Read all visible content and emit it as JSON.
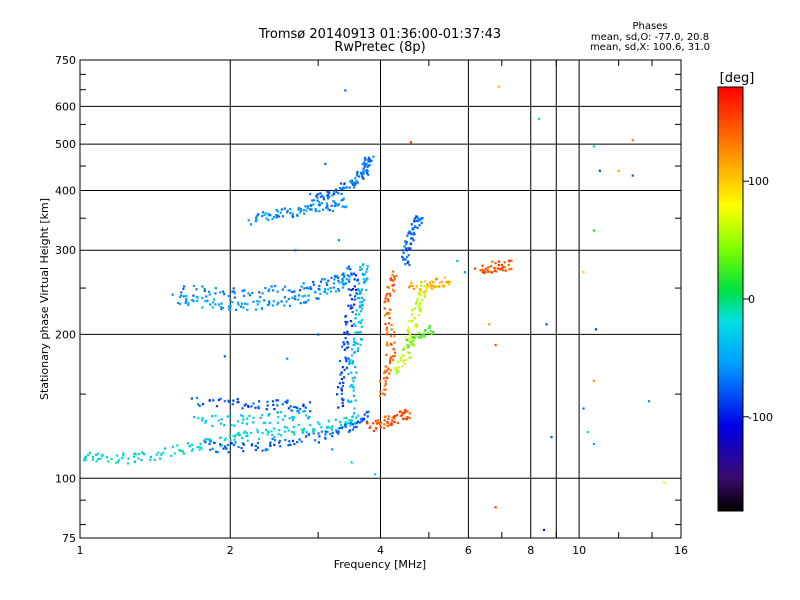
{
  "chart_data": {
    "type": "scatter",
    "title": "Tromsø 20140913 01:36:00-01:37:43",
    "subtitle": "RwPretec (8p)",
    "xlabel": "Frequency [MHz]",
    "ylabel": "Stationary phase Virtual Height [km]",
    "x_scale": "log",
    "y_scale": "log",
    "xlim": [
      1,
      16
    ],
    "ylim": [
      75,
      750
    ],
    "x_ticks": [
      1,
      2,
      4,
      6,
      8,
      10,
      16
    ],
    "y_ticks": [
      75,
      100,
      200,
      300,
      400,
      500,
      600,
      750
    ],
    "grid": true,
    "phase_stats": {
      "header": "Phases",
      "line_o": "mean, sd,O: -77.0, 20.8",
      "line_x": "mean, sd,X: 100.6, 31.0"
    },
    "colorbar": {
      "label": "[deg]",
      "ticks": [
        "100",
        "0",
        "-100"
      ],
      "range": [
        -180,
        180
      ],
      "colormap": "rainbow"
    },
    "traces": [
      {
        "phase": -70,
        "points": [
          [
            2.9,
            385
          ],
          [
            3.1,
            392
          ],
          [
            3.3,
            400
          ],
          [
            3.5,
            412
          ],
          [
            3.6,
            425
          ],
          [
            3.7,
            440
          ],
          [
            3.75,
            455
          ],
          [
            3.8,
            465
          ]
        ]
      },
      {
        "phase": -60,
        "points": [
          [
            2.2,
            352
          ],
          [
            2.4,
            356
          ],
          [
            2.6,
            360
          ],
          [
            2.8,
            364
          ],
          [
            3.0,
            368
          ],
          [
            3.2,
            372
          ],
          [
            3.4,
            378
          ]
        ]
      },
      {
        "phase": -55,
        "points": [
          [
            1.55,
            238
          ],
          [
            1.7,
            234
          ],
          [
            1.9,
            231
          ],
          [
            2.1,
            230
          ],
          [
            2.4,
            232
          ],
          [
            2.7,
            236
          ],
          [
            3.0,
            242
          ],
          [
            3.3,
            252
          ],
          [
            3.5,
            262
          ]
        ]
      },
      {
        "phase": -65,
        "points": [
          [
            1.6,
            248
          ],
          [
            1.9,
            244
          ],
          [
            2.2,
            245
          ],
          [
            2.6,
            248
          ],
          [
            3.0,
            254
          ],
          [
            3.3,
            262
          ],
          [
            3.5,
            272
          ]
        ]
      },
      {
        "phase": -20,
        "points": [
          [
            1.0,
            112
          ],
          [
            1.1,
            111
          ],
          [
            1.25,
            110
          ],
          [
            1.4,
            112
          ],
          [
            1.6,
            115
          ],
          [
            1.8,
            118
          ],
          [
            2.0,
            121
          ],
          [
            2.2,
            123
          ],
          [
            2.5,
            125
          ],
          [
            2.8,
            127
          ],
          [
            3.1,
            129
          ],
          [
            3.4,
            131
          ],
          [
            3.6,
            133
          ]
        ]
      },
      {
        "phase": -75,
        "points": [
          [
            1.8,
            117
          ],
          [
            2.0,
            116
          ],
          [
            2.3,
            117
          ],
          [
            2.6,
            119
          ],
          [
            3.0,
            122
          ],
          [
            3.3,
            126
          ],
          [
            3.6,
            131
          ],
          [
            3.8,
            136
          ]
        ]
      },
      {
        "phase": -80,
        "points": [
          [
            1.7,
            145
          ],
          [
            2.0,
            144
          ],
          [
            2.3,
            143
          ],
          [
            2.6,
            142
          ],
          [
            2.9,
            141
          ]
        ]
      },
      {
        "phase": -35,
        "points": [
          [
            1.7,
            132
          ],
          [
            2.0,
            132
          ],
          [
            2.3,
            133
          ],
          [
            2.6,
            135
          ],
          [
            2.9,
            137
          ]
        ]
      },
      {
        "phase": -40,
        "points": [
          [
            3.5,
            140
          ],
          [
            3.5,
            160
          ],
          [
            3.55,
            180
          ],
          [
            3.6,
            200
          ],
          [
            3.6,
            220
          ],
          [
            3.65,
            240
          ],
          [
            3.7,
            260
          ],
          [
            3.7,
            280
          ]
        ]
      },
      {
        "phase": -85,
        "points": [
          [
            3.3,
            140
          ],
          [
            3.35,
            160
          ],
          [
            3.4,
            185
          ],
          [
            3.45,
            210
          ],
          [
            3.5,
            240
          ],
          [
            3.55,
            270
          ]
        ]
      },
      {
        "phase": 150,
        "points": [
          [
            3.8,
            128
          ],
          [
            4.0,
            130
          ],
          [
            4.2,
            133
          ],
          [
            4.4,
            135
          ],
          [
            4.6,
            137
          ]
        ]
      },
      {
        "phase": 140,
        "points": [
          [
            4.0,
            150
          ],
          [
            4.1,
            165
          ],
          [
            4.2,
            180
          ],
          [
            4.2,
            200
          ],
          [
            4.1,
            225
          ],
          [
            4.2,
            250
          ],
          [
            4.3,
            275
          ]
        ]
      },
      {
        "phase": 60,
        "points": [
          [
            4.3,
            165
          ],
          [
            4.5,
            180
          ],
          [
            4.6,
            200
          ],
          [
            4.7,
            220
          ],
          [
            4.8,
            240
          ],
          [
            4.9,
            255
          ]
        ]
      },
      {
        "phase": 110,
        "points": [
          [
            4.6,
            250
          ],
          [
            4.9,
            252
          ],
          [
            5.2,
            255
          ],
          [
            5.5,
            258
          ]
        ]
      },
      {
        "phase": -75,
        "points": [
          [
            4.5,
            280
          ],
          [
            4.5,
            300
          ],
          [
            4.6,
            320
          ],
          [
            4.7,
            340
          ],
          [
            4.8,
            360
          ]
        ]
      },
      {
        "phase": 30,
        "points": [
          [
            4.5,
            190
          ],
          [
            4.8,
            200
          ],
          [
            5.1,
            205
          ]
        ]
      },
      {
        "phase": 150,
        "points": [
          [
            6.3,
            270
          ],
          [
            6.6,
            275
          ],
          [
            7.0,
            280
          ],
          [
            7.3,
            278
          ]
        ]
      }
    ],
    "scatter": [
      [
        3.4,
        648,
        -70
      ],
      [
        4.6,
        505,
        160
      ],
      [
        6.9,
        660,
        110
      ],
      [
        8.3,
        565,
        -10
      ],
      [
        10.7,
        495,
        -10
      ],
      [
        12.8,
        510,
        130
      ],
      [
        11.0,
        440,
        -85
      ],
      [
        12.0,
        440,
        120
      ],
      [
        12.8,
        430,
        -80
      ],
      [
        10.7,
        330,
        10
      ],
      [
        10.2,
        270,
        100
      ],
      [
        10.8,
        205,
        -90
      ],
      [
        6.6,
        210,
        120
      ],
      [
        6.8,
        190,
        150
      ],
      [
        8.6,
        210,
        -80
      ],
      [
        10.7,
        160,
        120
      ],
      [
        10.2,
        140,
        -70
      ],
      [
        13.8,
        145,
        -60
      ],
      [
        10.4,
        125,
        -20
      ],
      [
        8.8,
        122,
        -80
      ],
      [
        10.7,
        118,
        -40
      ],
      [
        14.8,
        98,
        70
      ],
      [
        6.8,
        87,
        160
      ],
      [
        8.5,
        78,
        -100
      ],
      [
        3.9,
        102,
        -20
      ],
      [
        3.5,
        108,
        -30
      ],
      [
        3.2,
        115,
        -60
      ],
      [
        1.95,
        180,
        -80
      ],
      [
        2.6,
        178,
        -60
      ],
      [
        3.0,
        200,
        -80
      ],
      [
        2.2,
        340,
        -60
      ],
      [
        2.7,
        300,
        -75
      ],
      [
        3.3,
        315,
        -60
      ],
      [
        3.1,
        455,
        -75
      ],
      [
        5.7,
        285,
        -40
      ],
      [
        5.9,
        270,
        -60
      ]
    ]
  }
}
